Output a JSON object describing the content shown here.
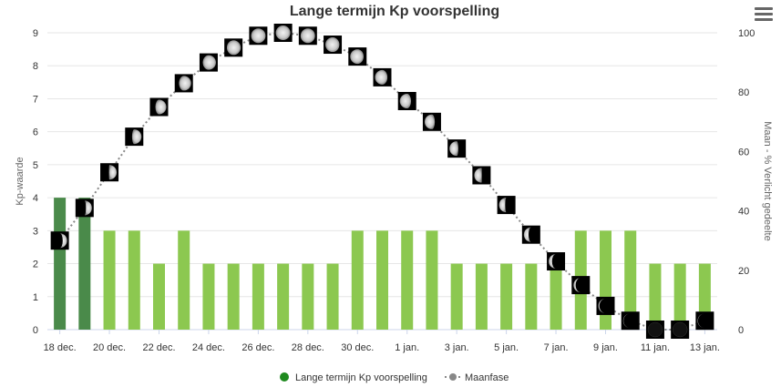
{
  "chart_data": {
    "type": "bar+line",
    "title": "Lange termijn Kp voorspelling",
    "ylabel_left": "Kp-waarde",
    "ylabel_right": "Maan - % Verlicht gedeelte",
    "ylim_left": [
      0,
      9
    ],
    "ylim_right": [
      0,
      100
    ],
    "yticks_left": [
      "0",
      "1",
      "2",
      "3",
      "4",
      "5",
      "6",
      "7",
      "8",
      "9"
    ],
    "yticks_right": [
      "0",
      "20",
      "40",
      "60",
      "80",
      "100"
    ],
    "xtick_labels": [
      "18 dec.",
      "20 dec.",
      "22 dec.",
      "24 dec.",
      "26 dec.",
      "28 dec.",
      "30 dec.",
      "1 jan.",
      "3 jan.",
      "5 jan.",
      "7 jan.",
      "9 jan.",
      "11 jan.",
      "13 jan."
    ],
    "kp_values": [
      4,
      4,
      3,
      3,
      2,
      3,
      2,
      2,
      2,
      2,
      2,
      2,
      3,
      3,
      3,
      3,
      2,
      2,
      2,
      2,
      2,
      3,
      3,
      3,
      2,
      2,
      2
    ],
    "moon_illumination": [
      30,
      41,
      53,
      65,
      75,
      83,
      90,
      95,
      99,
      100,
      99,
      96,
      92,
      85,
      77,
      70,
      61,
      52,
      42,
      32,
      23,
      15,
      8,
      3,
      0,
      0,
      3
    ],
    "series": [
      {
        "name": "Lange termijn Kp voorspelling",
        "color": "#1f8a1f"
      },
      {
        "name": "Maanfase",
        "color": "#888888"
      }
    ],
    "colors": {
      "bar_past": "#4a8a4a",
      "bar_future": "#8cc850",
      "grid": "#e6e6e6",
      "line": "#888888"
    },
    "legend_position": "bottom-center"
  }
}
